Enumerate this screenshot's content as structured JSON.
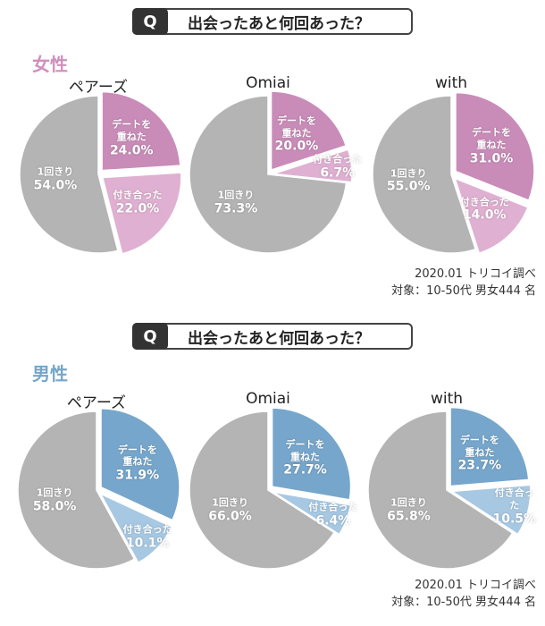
{
  "sections": [
    {
      "mark": "Q",
      "question": "出会ったあと何回あった？",
      "group": "女性",
      "group_color": "#d08fbd",
      "source": "2020.01 トリコイ調べ",
      "sample": "対象：10-50代 男女444 名"
    },
    {
      "mark": "Q",
      "question": "出会ったあと何回あった？",
      "group": "男性",
      "group_color": "#76a6c9",
      "source": "2020.01 トリコイ調べ",
      "sample": "対象：10-50代 男女444 名"
    }
  ],
  "chart_data": [
    {
      "type": "pie",
      "title": "ペアーズ",
      "categories": [
        "デートを\n重ねた",
        "付き合った",
        "1回きり"
      ],
      "values": [
        24.0,
        22.0,
        54.0
      ],
      "value_labels": [
        "24.0%",
        "22.0%",
        "54.0%"
      ],
      "colors": [
        "#c98cb8",
        "#dfb0d1",
        "#b4b4b4"
      ]
    },
    {
      "type": "pie",
      "title": "Omiai",
      "categories": [
        "デートを\n重ねた",
        "付き合った",
        "1回きり"
      ],
      "values": [
        20.0,
        6.7,
        73.3
      ],
      "value_labels": [
        "20.0%",
        "6.7%",
        "73.3%"
      ],
      "colors": [
        "#c98cb8",
        "#dfb0d1",
        "#b4b4b4"
      ]
    },
    {
      "type": "pie",
      "title": "with",
      "categories": [
        "デートを\n重ねた",
        "付き合った",
        "1回きり"
      ],
      "values": [
        31.0,
        14.0,
        55.0
      ],
      "value_labels": [
        "31.0%",
        "14.0%",
        "55.0%"
      ],
      "colors": [
        "#c98cb8",
        "#dfb0d1",
        "#b4b4b4"
      ]
    },
    {
      "type": "pie",
      "title": "ペアーズ",
      "categories": [
        "デートを\n重ねた",
        "付き合った",
        "1回きり"
      ],
      "values": [
        31.9,
        10.1,
        58.0
      ],
      "value_labels": [
        "31.9%",
        "10.1%",
        "58.0%"
      ],
      "colors": [
        "#76a6cb",
        "#a7c8e2",
        "#b4b4b4"
      ]
    },
    {
      "type": "pie",
      "title": "Omiai",
      "categories": [
        "デートを\n重ねた",
        "付き合った",
        "1回きり"
      ],
      "values": [
        27.7,
        6.4,
        66.0
      ],
      "value_labels": [
        "27.7%",
        "6.4%",
        "66.0%"
      ],
      "colors": [
        "#76a6cb",
        "#a7c8e2",
        "#b4b4b4"
      ]
    },
    {
      "type": "pie",
      "title": "with",
      "categories": [
        "デートを\n重ねた",
        "付き合った",
        "1回きり"
      ],
      "values": [
        23.7,
        10.5,
        65.8
      ],
      "value_labels": [
        "23.7%",
        "10.5%",
        "65.8%"
      ],
      "colors": [
        "#76a6cb",
        "#a7c8e2",
        "#b4b4b4"
      ]
    }
  ]
}
